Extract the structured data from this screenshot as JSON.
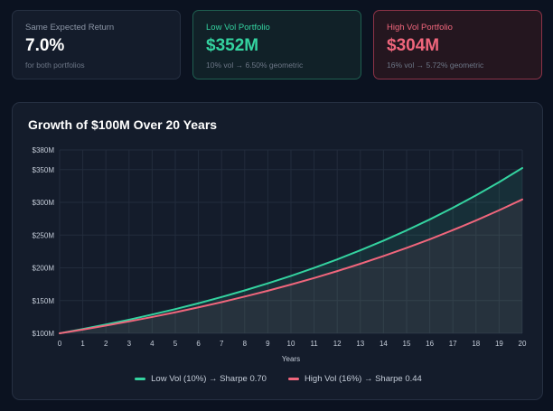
{
  "cards": {
    "same": {
      "label": "Same Expected Return",
      "value": "7.0%",
      "sub": "for both portfolios"
    },
    "low": {
      "label": "Low Vol Portfolio",
      "value": "$352M",
      "sub": "10% vol → 6.50% geometric"
    },
    "high": {
      "label": "High Vol Portfolio",
      "value": "$304M",
      "sub": "16% vol → 5.72% geometric"
    }
  },
  "colors": {
    "low": "#34d3a0",
    "high": "#f0667c"
  },
  "chart_data": {
    "type": "area",
    "title": "Growth of $100M Over 20 Years",
    "xlabel": "Years",
    "ylabel": "",
    "x": [
      0,
      1,
      2,
      3,
      4,
      5,
      6,
      7,
      8,
      9,
      10,
      11,
      12,
      13,
      14,
      15,
      16,
      17,
      18,
      19,
      20
    ],
    "xlim": [
      0,
      20
    ],
    "ylim": [
      100,
      380
    ],
    "y_ticks": [
      100,
      150,
      200,
      250,
      300,
      350,
      380
    ],
    "y_tick_labels": [
      "$100M",
      "$150M",
      "$200M",
      "$250M",
      "$300M",
      "$350M",
      "$380M"
    ],
    "grid": true,
    "legend_position": "bottom",
    "series": [
      {
        "name": "Low Vol (10%) → Sharpe 0.70",
        "color": "#34d3a0",
        "values": [
          100,
          106.5,
          113.4,
          120.8,
          128.7,
          137.0,
          145.9,
          155.4,
          165.5,
          176.3,
          187.7,
          199.9,
          212.9,
          226.8,
          241.5,
          257.2,
          273.9,
          291.7,
          310.7,
          330.9,
          352.4
        ]
      },
      {
        "name": "High Vol (16%) → Sharpe 0.44",
        "color": "#f0667c",
        "values": [
          100,
          105.7,
          111.8,
          118.2,
          124.9,
          132.1,
          139.6,
          147.6,
          156.1,
          165.0,
          174.5,
          184.4,
          195.0,
          206.2,
          218.0,
          230.4,
          243.6,
          257.6,
          272.3,
          287.9,
          304.4
        ]
      }
    ]
  }
}
